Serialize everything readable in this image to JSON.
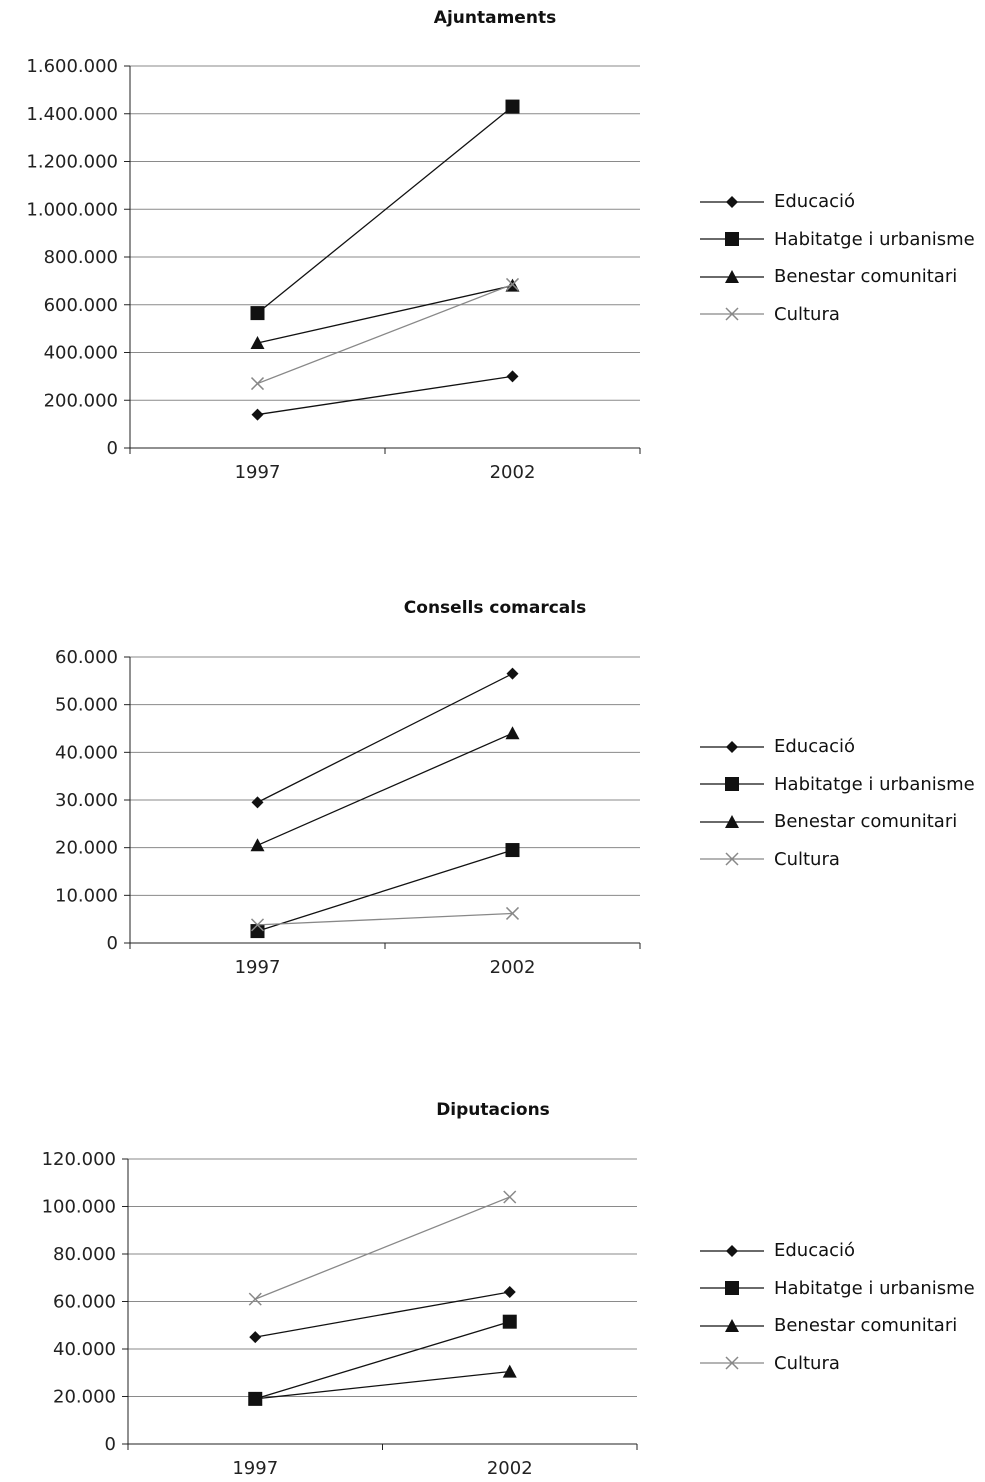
{
  "chart_data": [
    {
      "type": "line",
      "title": "Ajuntaments",
      "categories": [
        "1997",
        "2002"
      ],
      "ylim": [
        0,
        1600000
      ],
      "yticks": [
        "0",
        "200.000",
        "400.000",
        "600.000",
        "800.000",
        "1.000.000",
        "1.200.000",
        "1.400.000",
        "1.600.000"
      ],
      "grid": true,
      "legend_position": "right",
      "series": [
        {
          "name": "Educació",
          "marker": "diamond",
          "color": "#111111",
          "values": [
            140000,
            300000
          ]
        },
        {
          "name": "Habitatge i urbanisme",
          "marker": "square",
          "color": "#111111",
          "values": [
            565000,
            1430000
          ]
        },
        {
          "name": "Benestar comunitari",
          "marker": "triangle",
          "color": "#111111",
          "values": [
            440000,
            680000
          ]
        },
        {
          "name": "Cultura",
          "marker": "x",
          "color": "#888888",
          "values": [
            270000,
            685000
          ]
        }
      ]
    },
    {
      "type": "line",
      "title": "Consells comarcals",
      "categories": [
        "1997",
        "2002"
      ],
      "ylim": [
        0,
        60000
      ],
      "yticks": [
        "0",
        "10.000",
        "20.000",
        "30.000",
        "40.000",
        "50.000",
        "60.000"
      ],
      "grid": true,
      "legend_position": "right",
      "series": [
        {
          "name": "Educació",
          "marker": "diamond",
          "color": "#111111",
          "values": [
            29500,
            56500
          ]
        },
        {
          "name": "Habitatge i urbanisme",
          "marker": "square",
          "color": "#111111",
          "values": [
            2500,
            19500
          ]
        },
        {
          "name": "Benestar comunitari",
          "marker": "triangle",
          "color": "#111111",
          "values": [
            20500,
            44000
          ]
        },
        {
          "name": "Cultura",
          "marker": "x",
          "color": "#888888",
          "values": [
            3800,
            6200
          ]
        }
      ]
    },
    {
      "type": "line",
      "title": "Diputacions",
      "categories": [
        "1997",
        "2002"
      ],
      "ylim": [
        0,
        120000
      ],
      "yticks": [
        "0",
        "20.000",
        "40.000",
        "60.000",
        "80.000",
        "100.000",
        "120.000"
      ],
      "grid": true,
      "legend_position": "right",
      "series": [
        {
          "name": "Educació",
          "marker": "diamond",
          "color": "#111111",
          "values": [
            45000,
            64000
          ]
        },
        {
          "name": "Habitatge i urbanisme",
          "marker": "square",
          "color": "#111111",
          "values": [
            19000,
            51500
          ]
        },
        {
          "name": "Benestar comunitari",
          "marker": "triangle",
          "color": "#111111",
          "values": [
            19000,
            30500
          ]
        },
        {
          "name": "Cultura",
          "marker": "x",
          "color": "#888888",
          "values": [
            61000,
            104000
          ]
        }
      ]
    }
  ]
}
